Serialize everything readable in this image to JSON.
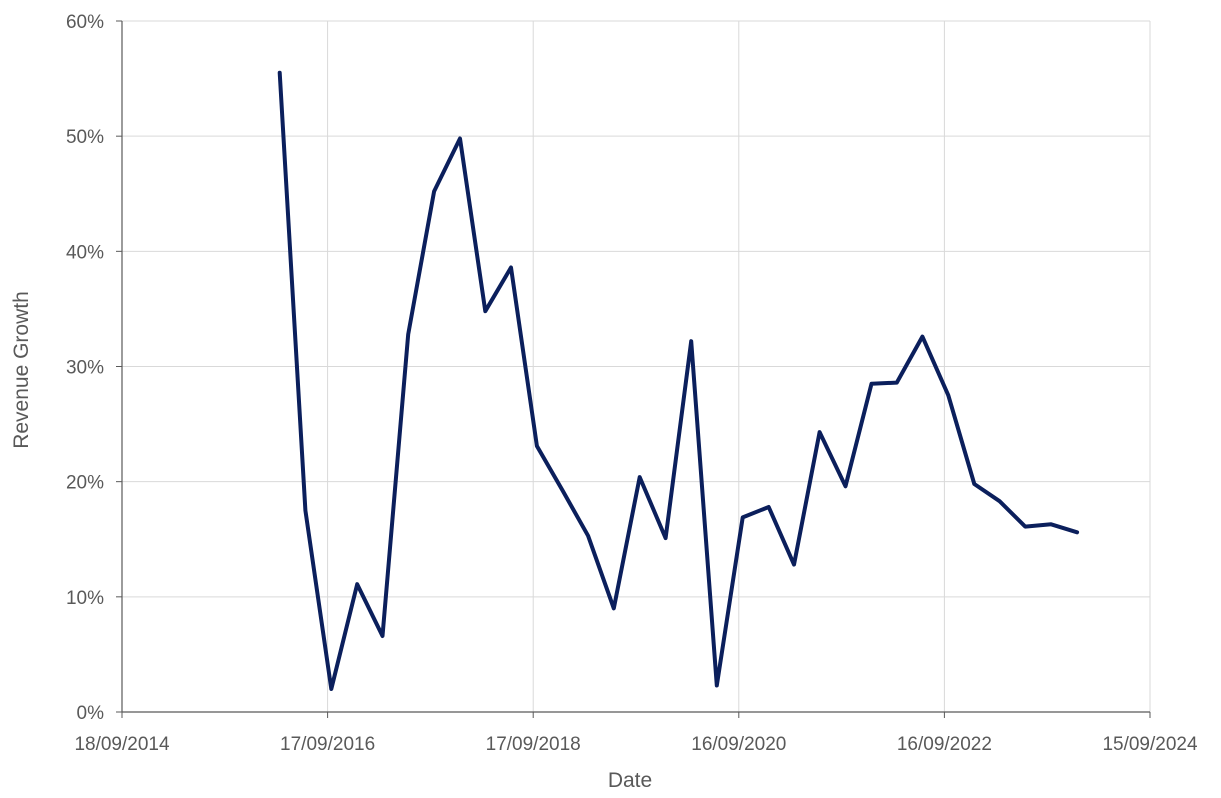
{
  "chart_data": {
    "type": "line",
    "title": "",
    "xlabel": "Date",
    "ylabel": "Revenue Growth",
    "x_axis_type": "date",
    "xlim": [
      "2014-09-18",
      "2024-09-15"
    ],
    "ylim": [
      0,
      0.6
    ],
    "x_ticks": [
      "2014-09-18",
      "2016-09-17",
      "2018-09-17",
      "2020-09-16",
      "2022-09-16",
      "2024-09-15"
    ],
    "x_tick_labels": [
      "18/09/2014",
      "17/09/2016",
      "17/09/2018",
      "16/09/2020",
      "16/09/2022",
      "15/09/2024"
    ],
    "y_ticks": [
      0,
      0.1,
      0.2,
      0.3,
      0.4,
      0.5,
      0.6
    ],
    "y_tick_labels": [
      "0%",
      "10%",
      "20%",
      "30%",
      "40%",
      "50%",
      "60%"
    ],
    "grid": true,
    "line_color": "#0b1f5c",
    "series": [
      {
        "x": [
          "2016-03-31",
          "2016-06-30",
          "2016-09-30",
          "2016-12-31",
          "2017-03-31",
          "2017-06-30",
          "2017-09-30",
          "2017-12-31",
          "2018-03-31",
          "2018-06-30",
          "2018-09-30",
          "2018-12-31",
          "2019-03-31",
          "2019-06-30",
          "2019-09-30",
          "2019-12-31",
          "2020-03-31",
          "2020-06-30",
          "2020-09-30",
          "2020-12-31",
          "2021-03-31",
          "2021-06-30",
          "2021-09-30",
          "2021-12-31",
          "2022-03-31",
          "2022-06-30",
          "2022-09-30",
          "2022-12-31",
          "2023-03-31",
          "2023-06-30",
          "2023-09-30",
          "2023-12-31"
        ],
        "y": [
          0.555,
          0.175,
          0.02,
          0.111,
          0.066,
          0.328,
          0.452,
          0.498,
          0.348,
          0.386,
          0.231,
          0.192,
          0.153,
          0.09,
          0.204,
          0.151,
          0.322,
          0.023,
          0.169,
          0.178,
          0.128,
          0.243,
          0.196,
          0.285,
          0.286,
          0.326,
          0.275,
          0.198,
          0.183,
          0.161,
          0.163,
          0.156
        ]
      }
    ]
  }
}
